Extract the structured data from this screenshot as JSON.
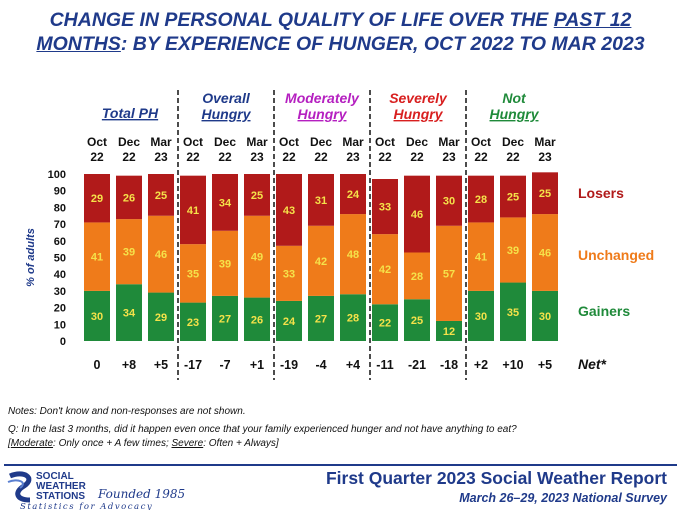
{
  "title": {
    "line1_a": "CHANGE IN PERSONAL QUALITY OF LIFE OVER THE ",
    "line1_u": "PAST 12",
    "line2_u": "MONTHS",
    "line2_b": ": BY EXPERIENCE OF HUNGER, OCT 2022 TO MAR 2023"
  },
  "chart_data": {
    "type": "bar",
    "stacked": true,
    "ylabel": "% of adults",
    "ylim": [
      0,
      100
    ],
    "yticks": [
      0,
      10,
      20,
      30,
      40,
      50,
      60,
      70,
      80,
      90,
      100
    ],
    "colors": {
      "losers": "#b11a1a",
      "unchanged": "#ef7b1a",
      "gainers": "#1f8a3a",
      "text": "#f5e24a"
    },
    "groups": [
      {
        "title": [
          "Total PH"
        ],
        "color": "#1f3a8a",
        "periods": [
          "Oct 22",
          "Dec 22",
          "Mar 23"
        ],
        "gainers": [
          30,
          34,
          29
        ],
        "unchanged": [
          41,
          39,
          46
        ],
        "losers": [
          29,
          26,
          25
        ],
        "net": [
          "0",
          "+8",
          "+5"
        ]
      },
      {
        "title": [
          "Overall",
          "Hungry"
        ],
        "color": "#1f3a8a",
        "periods": [
          "Oct 22",
          "Dec 22",
          "Mar 23"
        ],
        "gainers": [
          23,
          27,
          26
        ],
        "unchanged": [
          35,
          39,
          49
        ],
        "losers": [
          41,
          34,
          25
        ],
        "net": [
          "-17",
          "-7",
          "+1"
        ]
      },
      {
        "title": [
          "Moderately",
          "Hungry"
        ],
        "color": "#b520c0",
        "periods": [
          "Oct 22",
          "Dec 22",
          "Mar 23"
        ],
        "gainers": [
          24,
          27,
          28
        ],
        "unchanged": [
          33,
          42,
          48
        ],
        "losers": [
          43,
          31,
          24
        ],
        "net": [
          "-19",
          "-4",
          "+4"
        ]
      },
      {
        "title": [
          "Severely",
          "Hungry"
        ],
        "color": "#d81f1f",
        "periods": [
          "Oct 22",
          "Dec 22",
          "Mar 23"
        ],
        "gainers": [
          22,
          25,
          12
        ],
        "unchanged": [
          42,
          28,
          57
        ],
        "losers": [
          33,
          46,
          30
        ],
        "net": [
          "-11",
          "-21",
          "-18"
        ]
      },
      {
        "title": [
          "Not",
          "Hungry"
        ],
        "color": "#1f8a3a",
        "periods": [
          "Oct 22",
          "Dec 22",
          "Mar 23"
        ],
        "gainers": [
          30,
          35,
          30
        ],
        "unchanged": [
          41,
          39,
          46
        ],
        "losers": [
          28,
          25,
          25
        ],
        "net": [
          "+2",
          "+10",
          "+5"
        ]
      }
    ],
    "legend": {
      "losers": "Losers",
      "unchanged": "Unchanged",
      "gainers": "Gainers",
      "net": "Net*"
    }
  },
  "notes": {
    "line1": "Notes: Don't know and non-responses are not shown.",
    "line2": "Q: In the last 3 months, did it happen even once that your family experienced hunger and not have anything to eat?",
    "line3": "[Moderate: Only once + A few times; Severe: Often + Always]"
  },
  "footer": {
    "logo_line1": "SOCIAL",
    "logo_line2": "WEATHER",
    "logo_line3": "STATIONS",
    "logo_founded": "Founded 1985",
    "logo_tagline": "Statistics for Advocacy",
    "report_title": "First Quarter 2023 Social Weather Report",
    "report_sub": "March 26–29, 2023 National Survey"
  }
}
